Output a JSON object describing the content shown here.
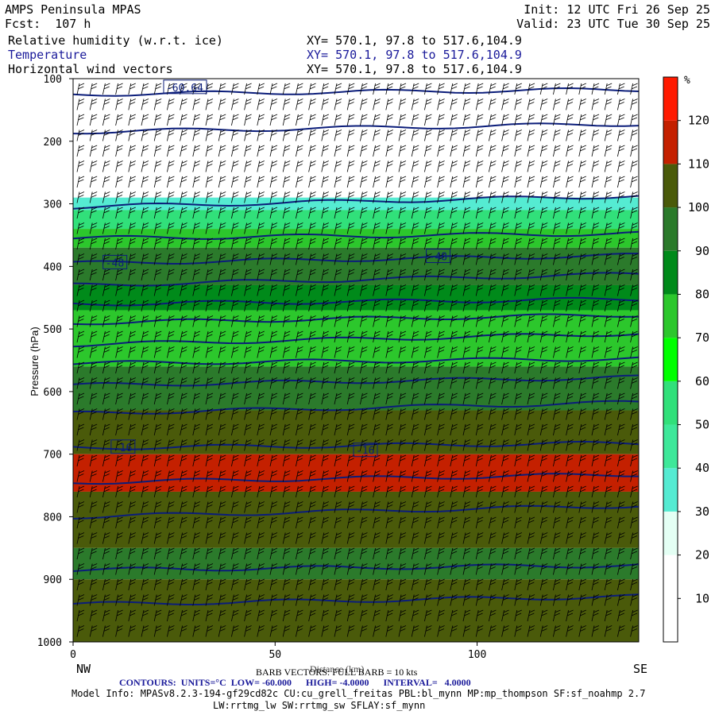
{
  "header": {
    "title": "AMPS Peninsula MPAS",
    "init": "Init: 12 UTC Fri 26 Sep 25",
    "forecast": "Fcst:  107 h",
    "valid": "Valid: 23 UTC Tue 30 Sep 25",
    "fields": [
      {
        "label": "Relative humidity (w.r.t. ice)",
        "xy": "XY= 570.1, 97.8 to 517.6,104.9"
      },
      {
        "label": "Temperature",
        "xy": "XY= 570.1, 97.8 to 517.6,104.9"
      },
      {
        "label": "Horizontal wind vectors",
        "xy": "XY= 570.1, 97.8 to 517.6,104.9"
      }
    ]
  },
  "footer": {
    "nw": "NW",
    "se": "SE",
    "barb_note": "BARB VECTORS: FULL BARB = 10 kts",
    "distance_label": "Distance (km)",
    "contours": "CONTOURS:  UNITS=°C  LOW= -60.000      HIGH= -4.0000      INTERVAL=   4.0000",
    "model_info": "Model Info: MPASv8.2.3-194-gf29cd82c CU:cu_grell_freitas PBL:bl_mynn MP:mp_thompson SF:sf_noahmp 2.7",
    "model_info2": "LW:rrtmg_lw SW:rrtmg_sw SFLAY:sf_mynn"
  },
  "colorbar": {
    "unit": "%",
    "levels": [
      10,
      20,
      30,
      40,
      50,
      60,
      70,
      80,
      90,
      100,
      110,
      120
    ],
    "colors": [
      "#ffffff",
      "#ffffff",
      "#e4fff4",
      "#55ebd2",
      "#3ee89a",
      "#31e07a",
      "#00ff00",
      "#2cc72c",
      "#008a1a",
      "#2b7a2b",
      "#4a5a0a",
      "#c42000",
      "#ff1a00"
    ]
  },
  "chart_data": {
    "type": "cross-section",
    "xlabel": "Distance (km)",
    "ylabel": "Pressure (hPa)",
    "xlim": [
      0,
      140
    ],
    "ylim": [
      1000,
      100
    ],
    "x_ticks": [
      0,
      50,
      100
    ],
    "y_ticks": [
      100,
      200,
      300,
      400,
      500,
      600,
      700,
      800,
      900,
      1000
    ],
    "contour_labels": [
      {
        "text": "-60.64",
        "x": 23,
        "y": 115
      },
      {
        "text": "-48",
        "x": 8,
        "y": 395
      },
      {
        "text": "-48",
        "x": 88,
        "y": 385
      },
      {
        "text": "-16",
        "x": 10,
        "y": 690
      },
      {
        "text": "-16",
        "x": 70,
        "y": 695
      }
    ],
    "rh_bands": [
      {
        "p_top": 100,
        "p_bot": 290,
        "rh": 15
      },
      {
        "p_top": 290,
        "p_bot": 310,
        "rh": 35
      },
      {
        "p_top": 310,
        "p_bot": 340,
        "rh": 55
      },
      {
        "p_top": 340,
        "p_bot": 370,
        "rh": 75
      },
      {
        "p_top": 370,
        "p_bot": 430,
        "rh": 95
      },
      {
        "p_top": 430,
        "p_bot": 470,
        "rh": 85
      },
      {
        "p_top": 470,
        "p_bot": 560,
        "rh": 75
      },
      {
        "p_top": 560,
        "p_bot": 630,
        "rh": 90
      },
      {
        "p_top": 630,
        "p_bot": 700,
        "rh": 105
      },
      {
        "p_top": 700,
        "p_bot": 760,
        "rh": 112
      },
      {
        "p_top": 760,
        "p_bot": 850,
        "rh": 105
      },
      {
        "p_top": 850,
        "p_bot": 900,
        "rh": 95
      },
      {
        "p_top": 900,
        "p_bot": 1000,
        "rh": 105
      }
    ],
    "isotherm_pressures": [
      125,
      185,
      305,
      355,
      395,
      430,
      460,
      490,
      525,
      555,
      590,
      635,
      690,
      745,
      800,
      885,
      940
    ]
  }
}
